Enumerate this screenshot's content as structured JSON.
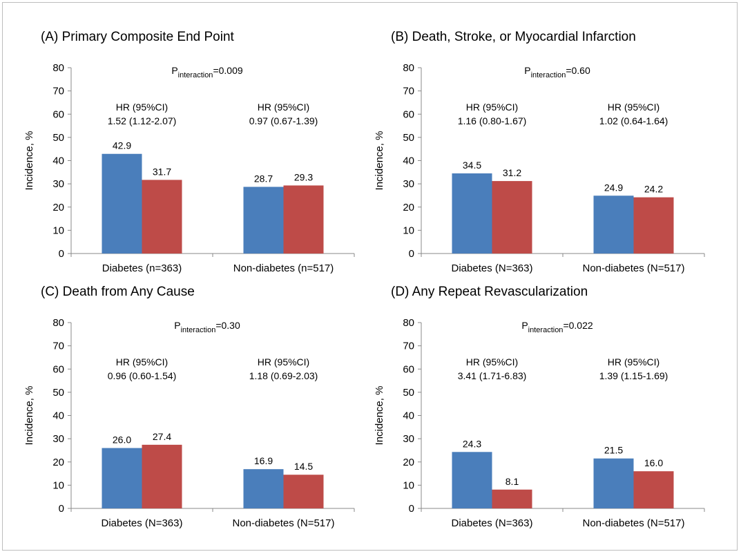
{
  "chart_data": [
    {
      "type": "bar",
      "title": "(A) Primary Composite End Point",
      "ylabel": "Incidence, %",
      "ylim": [
        0,
        80
      ],
      "yticks": [
        0,
        10,
        20,
        30,
        40,
        50,
        60,
        70,
        80
      ],
      "categories": [
        "Diabetes (n=363)",
        "Non-diabetes (n=517)"
      ],
      "series": [
        {
          "color": "#4a7ebb",
          "values": [
            42.9,
            28.7
          ]
        },
        {
          "color": "#be4b48",
          "values": [
            31.7,
            29.3
          ]
        }
      ],
      "value_labels": [
        [
          "42.9",
          "31.7"
        ],
        [
          "28.7",
          "29.3"
        ]
      ],
      "p_label": {
        "main": "P",
        "sub": "interaction",
        "rest": "=0.009"
      },
      "hr_labels": [
        {
          "line1": "HR (95%CI)",
          "line2": "1.52 (1.12-2.07)"
        },
        {
          "line1": "HR (95%CI)",
          "line2": "0.97 (0.67-1.39)"
        }
      ]
    },
    {
      "type": "bar",
      "title": "(B) Death, Stroke, or Myocardial Infarction",
      "ylabel": "Incidence, %",
      "ylim": [
        0,
        80
      ],
      "yticks": [
        0,
        10,
        20,
        30,
        40,
        50,
        60,
        70,
        80
      ],
      "categories": [
        "Diabetes (N=363)",
        "Non-diabetes (N=517)"
      ],
      "series": [
        {
          "color": "#4a7ebb",
          "values": [
            34.5,
            24.9
          ]
        },
        {
          "color": "#be4b48",
          "values": [
            31.2,
            24.2
          ]
        }
      ],
      "value_labels": [
        [
          "34.5",
          "31.2"
        ],
        [
          "24.9",
          "24.2"
        ]
      ],
      "p_label": {
        "main": "P",
        "sub": "interaction",
        "rest": "=0.60"
      },
      "hr_labels": [
        {
          "line1": "HR (95%CI)",
          "line2": "1.16 (0.80-1.67)"
        },
        {
          "line1": "HR (95%CI)",
          "line2": "1.02 (0.64-1.64)"
        }
      ]
    },
    {
      "type": "bar",
      "title": "(C) Death from Any Cause",
      "ylabel": "Incidence, %",
      "ylim": [
        0,
        80
      ],
      "yticks": [
        0,
        10,
        20,
        30,
        40,
        50,
        60,
        70,
        80
      ],
      "categories": [
        "Diabetes (N=363)",
        "Non-diabetes (N=517)"
      ],
      "series": [
        {
          "color": "#4a7ebb",
          "values": [
            26.0,
            16.9
          ]
        },
        {
          "color": "#be4b48",
          "values": [
            27.4,
            14.5
          ]
        }
      ],
      "value_labels": [
        [
          "26.0",
          "27.4"
        ],
        [
          "16.9",
          "14.5"
        ]
      ],
      "p_label": {
        "main": "P",
        "sub": "interaction",
        "rest": "=0.30"
      },
      "hr_labels": [
        {
          "line1": "HR (95%CI)",
          "line2": "0.96 (0.60-1.54)"
        },
        {
          "line1": "HR (95%CI)",
          "line2": "1.18 (0.69-2.03)"
        }
      ]
    },
    {
      "type": "bar",
      "title": "(D) Any Repeat Revascularization",
      "ylabel": "Incidence, %",
      "ylim": [
        0,
        80
      ],
      "yticks": [
        0,
        10,
        20,
        30,
        40,
        50,
        60,
        70,
        80
      ],
      "categories": [
        "Diabetes (N=363)",
        "Non-diabetes (N=517)"
      ],
      "series": [
        {
          "color": "#4a7ebb",
          "values": [
            24.3,
            21.5
          ]
        },
        {
          "color": "#be4b48",
          "values": [
            8.1,
            16.0
          ]
        }
      ],
      "value_labels": [
        [
          "24.3",
          "8.1"
        ],
        [
          "21.5",
          "16.0"
        ]
      ],
      "p_label": {
        "main": "P",
        "sub": "interaction",
        "rest": "=0.022"
      },
      "hr_labels": [
        {
          "line1": "HR (95%CI)",
          "line2": "3.41 (1.71-6.83)"
        },
        {
          "line1": "HR (95%CI)",
          "line2": "1.39 (1.15-1.69)"
        }
      ]
    }
  ]
}
